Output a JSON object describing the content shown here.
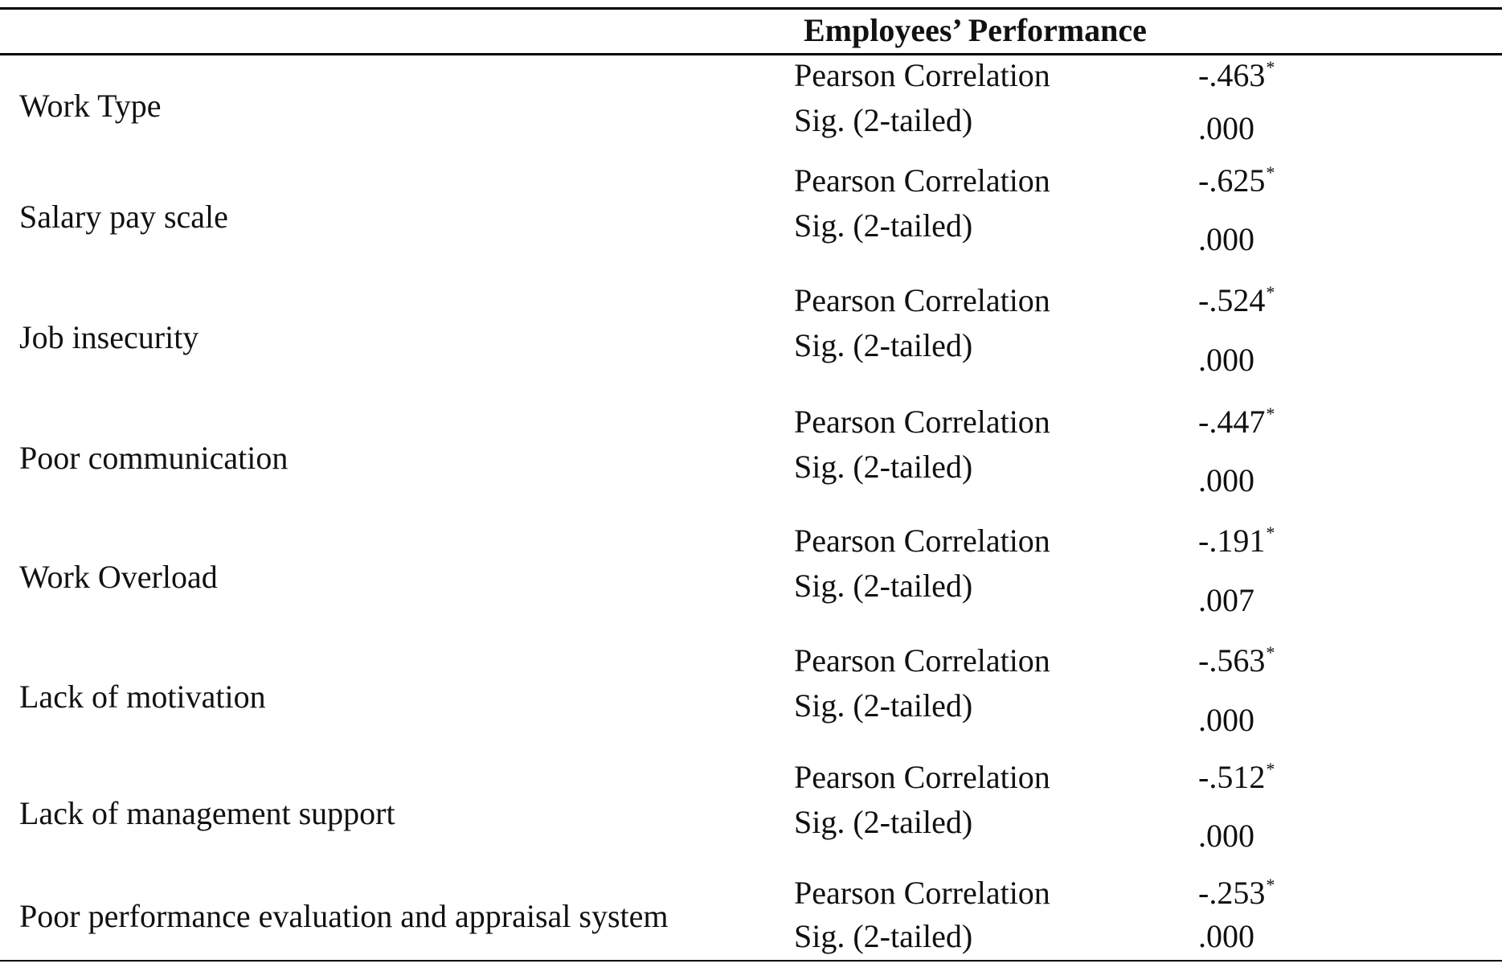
{
  "table": {
    "header": "Employees’ Performance",
    "rows": [
      {
        "variable": "Work Type",
        "r_label": "Pearson Correlation",
        "r": "-.463",
        "r_mark": "*",
        "sig_label": "Sig. (2-tailed)",
        "sig": ".000"
      },
      {
        "variable": "Salary pay scale",
        "r_label": "Pearson Correlation",
        "r": "-.625",
        "r_mark": "*",
        "sig_label": "Sig. (2-tailed)",
        "sig": ".000"
      },
      {
        "variable": "Job insecurity",
        "r_label": "Pearson Correlation",
        "r": "-.524",
        "r_mark": "*",
        "sig_label": "Sig. (2-tailed)",
        "sig": ".000"
      },
      {
        "variable": "Poor communication",
        "r_label": "Pearson Correlation",
        "r": "-.447",
        "r_mark": "*",
        "sig_label": "Sig. (2-tailed)",
        "sig": ".000"
      },
      {
        "variable": "Work Overload",
        "r_label": "Pearson Correlation",
        "r": "-.191",
        "r_mark": "*",
        "sig_label": "Sig. (2-tailed)",
        "sig": ".007"
      },
      {
        "variable": "Lack of motivation",
        "r_label": "Pearson Correlation",
        "r": "-.563",
        "r_mark": "*",
        "sig_label": "Sig. (2-tailed)",
        "sig": ".000"
      },
      {
        "variable": "Lack of management support",
        "r_label": "Pearson Correlation",
        "r": "-.512",
        "r_mark": "*",
        "sig_label": "Sig. (2-tailed)",
        "sig": ".000"
      },
      {
        "variable": "Poor performance evaluation and appraisal system",
        "r_label": "Pearson Correlation",
        "r": "-.253",
        "r_mark": "*",
        "sig_label": "Sig. (2-tailed)",
        "sig": ".000"
      }
    ]
  }
}
